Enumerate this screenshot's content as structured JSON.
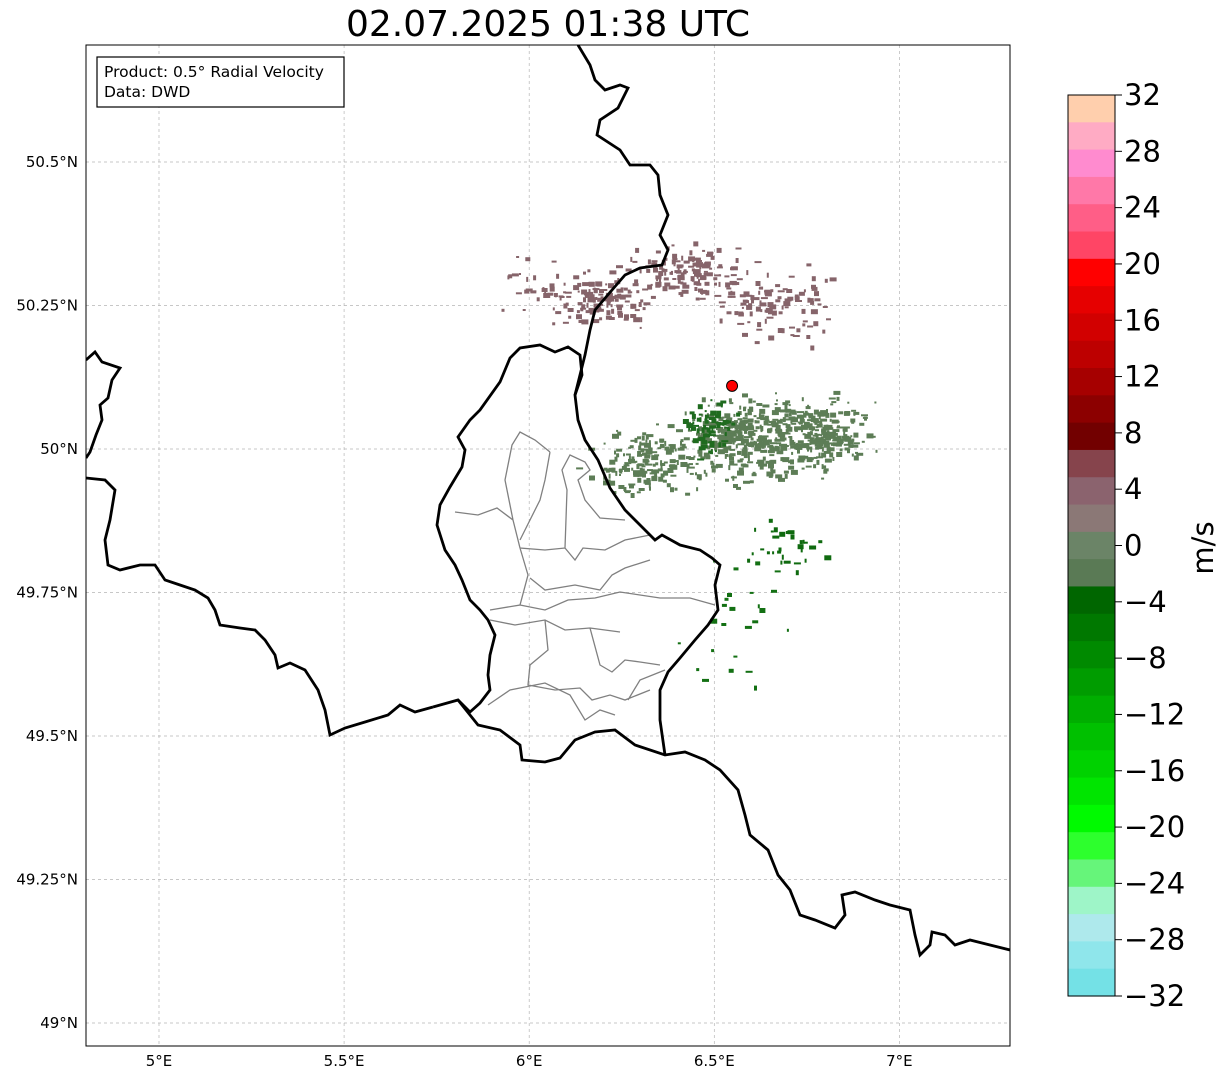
{
  "title": "02.07.2025 01:38 UTC",
  "info_box": {
    "product": "Product: 0.5° Radial Velocity",
    "data": "Data: DWD"
  },
  "map_extent": {
    "lon": [
      4.8,
      7.3
    ],
    "lat": [
      48.95,
      50.7
    ]
  },
  "lon_ticks": [
    {
      "value": 5.0,
      "label": "5°E"
    },
    {
      "value": 5.5,
      "label": "5.5°E"
    },
    {
      "value": 6.0,
      "label": "6°E"
    },
    {
      "value": 6.5,
      "label": "6.5°E"
    },
    {
      "value": 7.0,
      "label": "7°E"
    }
  ],
  "lat_ticks": [
    {
      "value": 49.0,
      "label": "49°N"
    },
    {
      "value": 49.25,
      "label": "49.25°N"
    },
    {
      "value": 49.5,
      "label": "49.5°N"
    },
    {
      "value": 49.75,
      "label": "49.75°N"
    },
    {
      "value": 50.0,
      "label": "50°N"
    },
    {
      "value": 50.25,
      "label": "50.25°N"
    },
    {
      "value": 50.5,
      "label": "50.5°N"
    }
  ],
  "radar_site": {
    "lon": 6.548,
    "lat": 50.11,
    "color": "#ff0000"
  },
  "colorbar": {
    "unit_label": "m/s",
    "range": [
      -32,
      32
    ],
    "ticks": [
      {
        "value": 32,
        "label": "32"
      },
      {
        "value": 28,
        "label": "28"
      },
      {
        "value": 24,
        "label": "24"
      },
      {
        "value": 20,
        "label": "20"
      },
      {
        "value": 16,
        "label": "16"
      },
      {
        "value": 12,
        "label": "12"
      },
      {
        "value": 8,
        "label": "8"
      },
      {
        "value": 4,
        "label": "4"
      },
      {
        "value": 0,
        "label": "0"
      },
      {
        "value": -4,
        "label": "−4"
      },
      {
        "value": -8,
        "label": "−8"
      },
      {
        "value": -12,
        "label": "−12"
      },
      {
        "value": -16,
        "label": "−16"
      },
      {
        "value": -20,
        "label": "−20"
      },
      {
        "value": -24,
        "label": "−24"
      },
      {
        "value": -28,
        "label": "−28"
      },
      {
        "value": -32,
        "label": "−32"
      }
    ],
    "colors_top_to_bottom": [
      "#ffcfad",
      "#ffabc4",
      "#ff8bcf",
      "#ff78a8",
      "#ff5e87",
      "#ff4565",
      "#ff0000",
      "#e60000",
      "#d20000",
      "#bd0000",
      "#a60000",
      "#8c0000",
      "#720000",
      "#86444c",
      "#8b636e",
      "#8b7876",
      "#6b8467",
      "#5a7a55",
      "#006600",
      "#007800",
      "#008a00",
      "#009c00",
      "#00ae00",
      "#00c000",
      "#00d200",
      "#00e500",
      "#00fa00",
      "#2dff2d",
      "#66f57a",
      "#9ef5c8",
      "#aee9ec",
      "#8fe6eb",
      "#74e1e6"
    ]
  },
  "velocity_clusters": [
    {
      "lon": 6.42,
      "lat": 50.31,
      "spread_lon": 0.13,
      "spread_lat": 0.04,
      "color": "#86646a",
      "count": 150
    },
    {
      "lon": 6.2,
      "lat": 50.26,
      "spread_lon": 0.12,
      "spread_lat": 0.04,
      "color": "#86646a",
      "count": 110
    },
    {
      "lon": 6.65,
      "lat": 50.25,
      "spread_lon": 0.14,
      "spread_lat": 0.06,
      "color": "#86646a",
      "count": 100
    },
    {
      "lon": 6.05,
      "lat": 50.28,
      "spread_lon": 0.12,
      "spread_lat": 0.05,
      "color": "#86646a",
      "count": 40
    },
    {
      "lon": 6.6,
      "lat": 50.02,
      "spread_lon": 0.18,
      "spread_lat": 0.06,
      "color": "#5d7d56",
      "count": 420
    },
    {
      "lon": 6.8,
      "lat": 50.03,
      "spread_lon": 0.1,
      "spread_lat": 0.05,
      "color": "#5d7d56",
      "count": 180
    },
    {
      "lon": 6.3,
      "lat": 49.98,
      "spread_lon": 0.12,
      "spread_lat": 0.05,
      "color": "#5d7d56",
      "count": 160
    },
    {
      "lon": 6.48,
      "lat": 50.04,
      "spread_lon": 0.06,
      "spread_lat": 0.05,
      "color": "#1f6b1f",
      "count": 70
    },
    {
      "lon": 6.7,
      "lat": 49.84,
      "spread_lon": 0.12,
      "spread_lat": 0.05,
      "color": "#0f6a0f",
      "count": 30
    },
    {
      "lon": 6.55,
      "lat": 49.72,
      "spread_lon": 0.15,
      "spread_lat": 0.1,
      "color": "#137013",
      "count": 25
    }
  ]
}
